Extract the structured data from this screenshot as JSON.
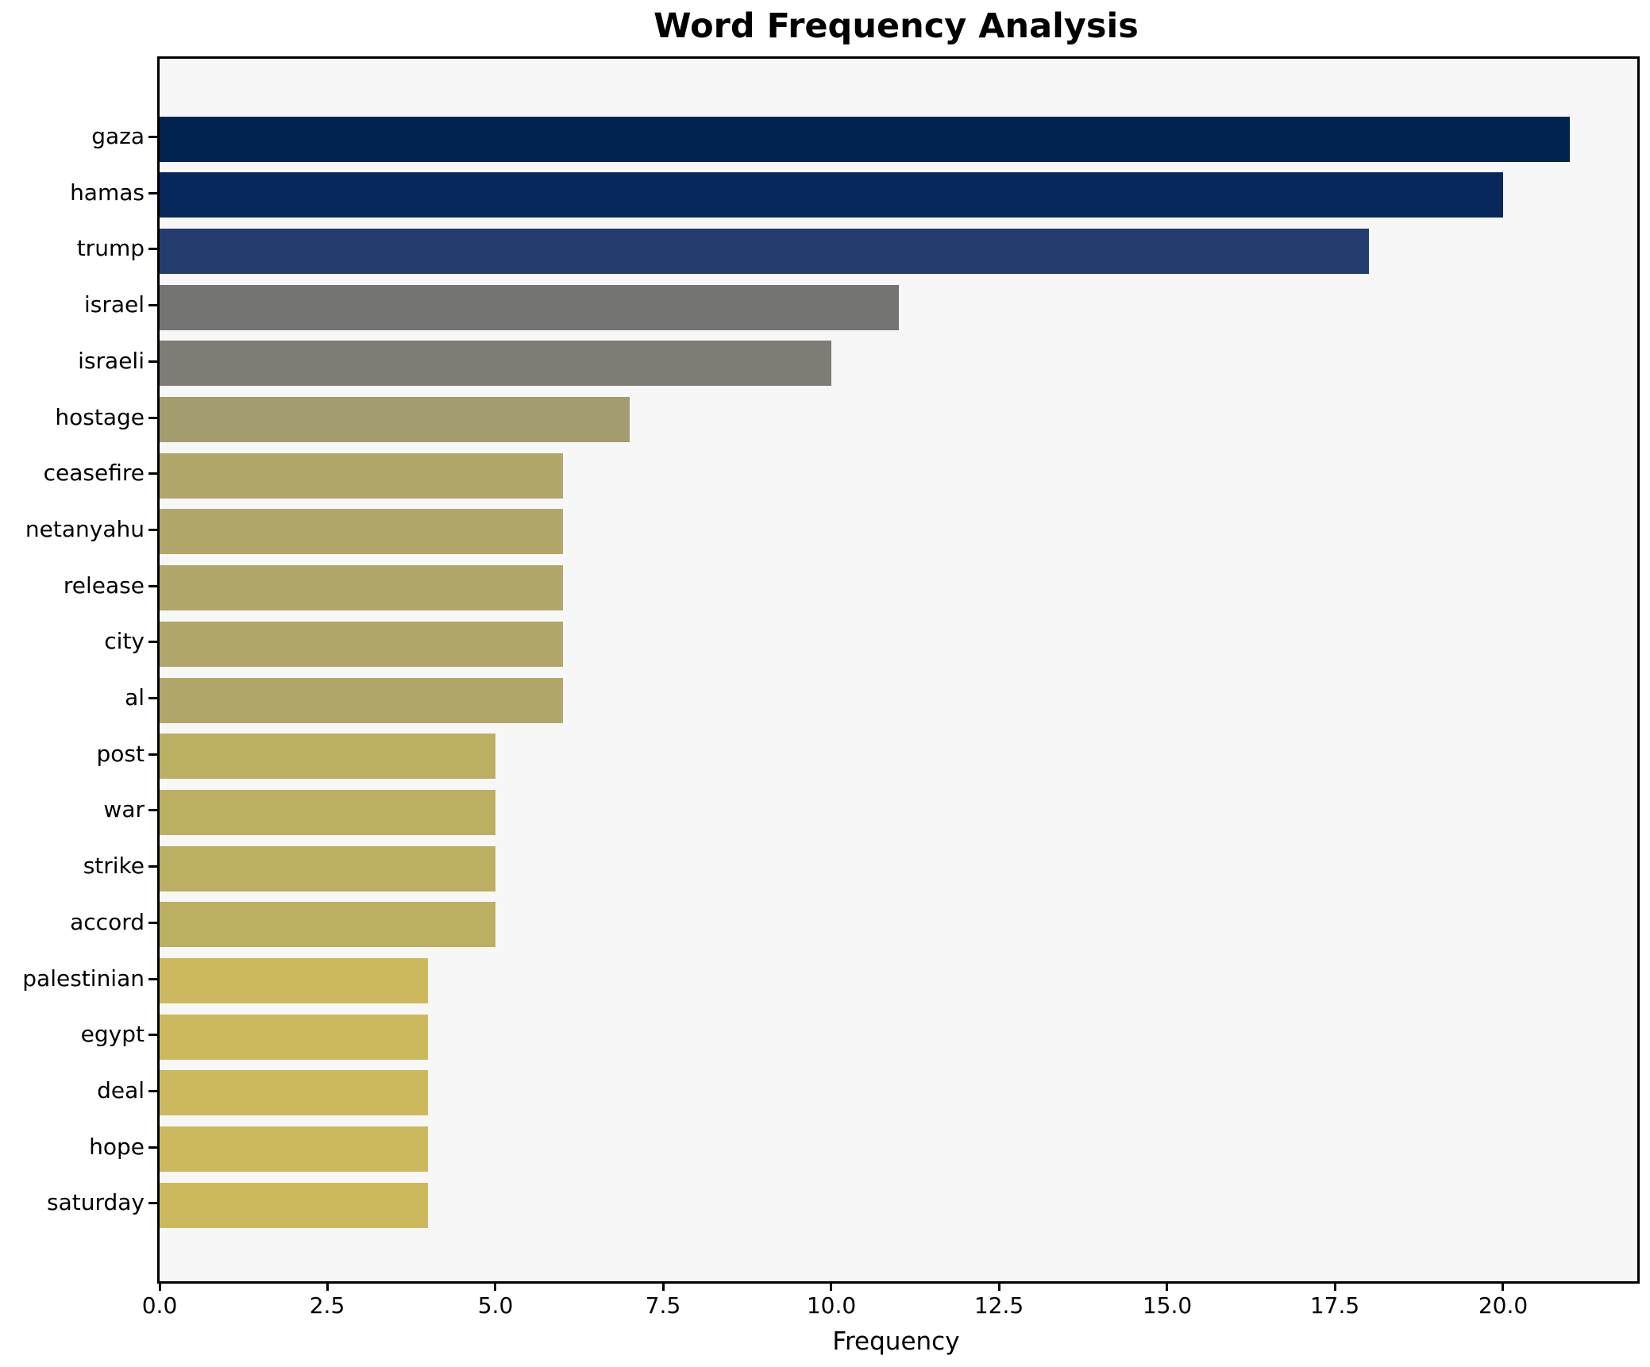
{
  "title": "Word Frequency Analysis",
  "chart_data": {
    "type": "bar",
    "orientation": "horizontal",
    "title": "Word Frequency Analysis",
    "xlabel": "Frequency",
    "ylabel": "",
    "categories": [
      "gaza",
      "hamas",
      "trump",
      "israel",
      "israeli",
      "hostage",
      "ceasefire",
      "netanyahu",
      "release",
      "city",
      "al",
      "post",
      "war",
      "strike",
      "accord",
      "palestinian",
      "egypt",
      "deal",
      "hope",
      "saturday"
    ],
    "values": [
      21,
      20,
      18,
      11,
      10,
      7,
      6,
      6,
      6,
      6,
      6,
      5,
      5,
      5,
      5,
      4,
      4,
      4,
      4,
      4
    ],
    "bar_colors": [
      "#02234d",
      "#08285c",
      "#243d6e",
      "#747473",
      "#7f7c75",
      "#a29c6f",
      "#b1a76a",
      "#b1a76a",
      "#b1a76a",
      "#b1a76a",
      "#b1a76a",
      "#bdaf62",
      "#bdaf62",
      "#bdaf62",
      "#bdaf62",
      "#ccb95e",
      "#ccb95e",
      "#ccb95e",
      "#ccb95e",
      "#ccb95e"
    ],
    "colormap": "cividis-reversed-by-value",
    "xlim": [
      0,
      22
    ],
    "xticks": [
      0.0,
      2.5,
      5.0,
      7.5,
      10.0,
      12.5,
      15.0,
      17.5,
      20.0
    ],
    "xtick_labels": [
      "0.0",
      "2.5",
      "5.0",
      "7.5",
      "10.0",
      "12.5",
      "15.0",
      "17.5",
      "20.0"
    ],
    "grid": false,
    "legend": null,
    "plot_background": "#f7f7f7",
    "figure_background": "#ffffff",
    "spine_color": "#000000"
  }
}
